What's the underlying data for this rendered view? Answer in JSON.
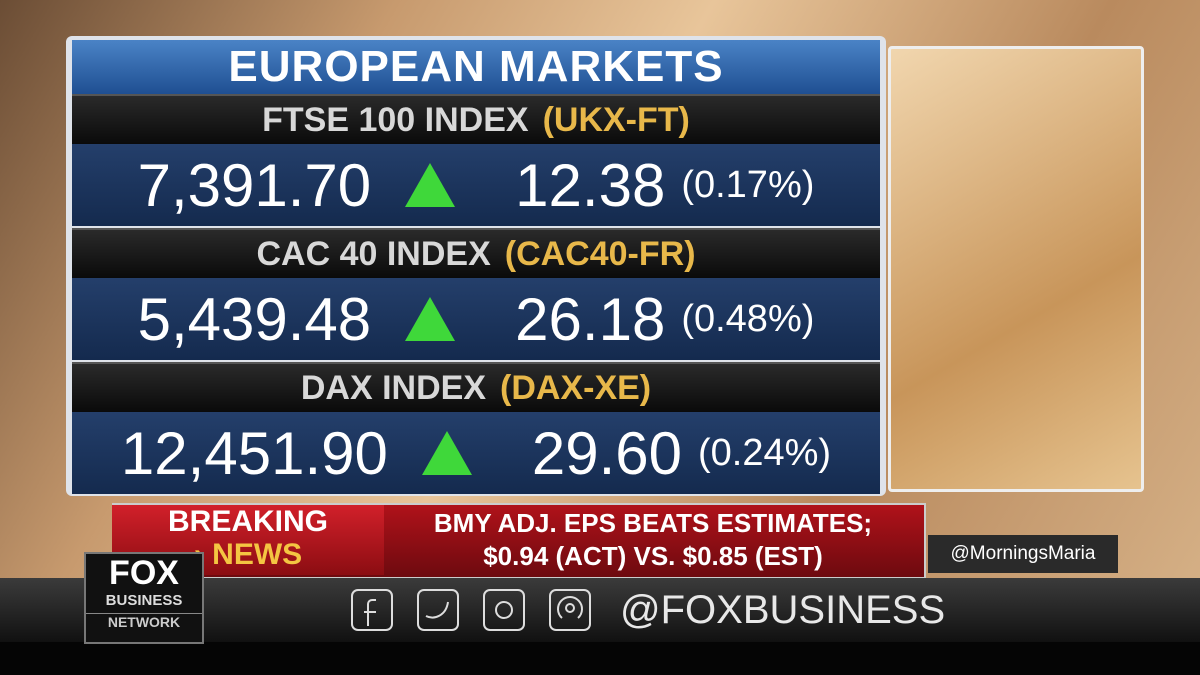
{
  "panel": {
    "title": "EUROPEAN MARKETS",
    "rows": [
      {
        "name": "FTSE 100 INDEX",
        "symbol": "(UKX-FT)",
        "value": "7,391.70",
        "change": "12.38",
        "percent": "(0.17%)"
      },
      {
        "name": "CAC 40 INDEX",
        "symbol": "(CAC40-FR)",
        "value": "5,439.48",
        "change": "26.18",
        "percent": "(0.48%)"
      },
      {
        "name": "DAX INDEX",
        "symbol": "(DAX-XE)",
        "value": "12,451.90",
        "change": "29.60",
        "percent": "(0.24%)"
      }
    ]
  },
  "ticker": {
    "label_top": "BREAKING",
    "label_bottom": "NEWS",
    "headline_1": "BMY ADJ. EPS BEATS ESTIMATES;",
    "headline_2": "$0.94 (ACT) VS. $0.85 (EST)",
    "handle": "@MorningsMaria"
  },
  "logo": {
    "line_1": "FOX",
    "line_2": "BUSINESS",
    "line_3": "NETWORK"
  },
  "social": {
    "handle": "@FOXBUSINESS"
  }
}
